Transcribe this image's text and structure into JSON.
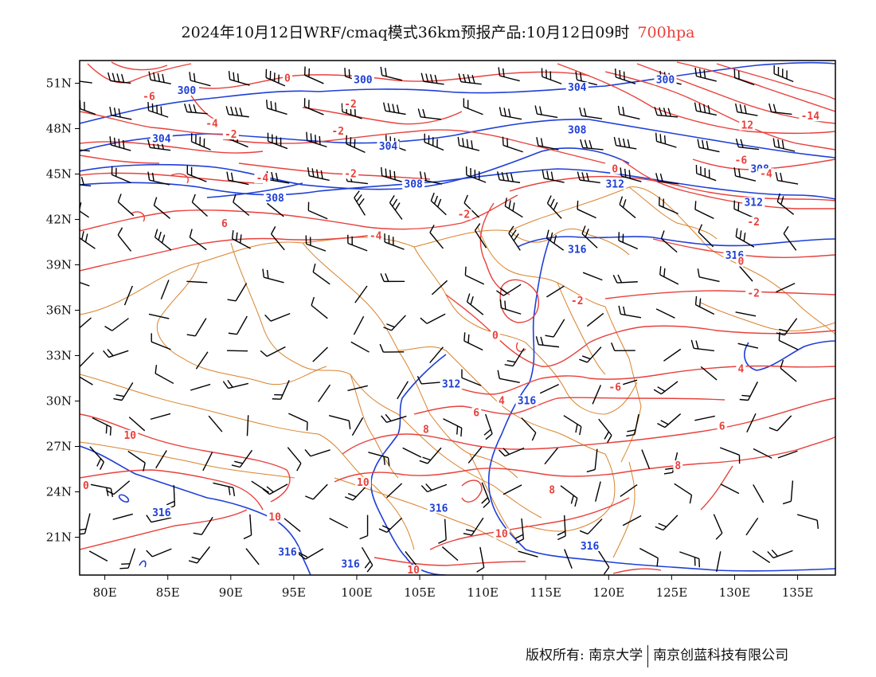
{
  "title": {
    "text": "2024年10月12日WRF/cmaq模式36km预报产品:10月12日09时",
    "level": "700hpa",
    "level_color": "#e8413c"
  },
  "axes": {
    "lat_labels": [
      "51N",
      "48N",
      "45N",
      "42N",
      "39N",
      "36N",
      "33N",
      "30N",
      "27N",
      "24N",
      "21N"
    ],
    "lat_values": [
      51,
      48,
      45,
      42,
      39,
      36,
      33,
      30,
      27,
      24,
      21
    ],
    "lon_labels": [
      "80E",
      "85E",
      "90E",
      "95E",
      "100E",
      "105E",
      "110E",
      "115E",
      "120E",
      "125E",
      "130E",
      "135E"
    ],
    "lon_values": [
      80,
      85,
      90,
      95,
      100,
      105,
      110,
      115,
      120,
      125,
      130,
      135
    ],
    "lon_range": [
      78,
      138
    ],
    "lat_range": [
      18.5,
      52.5
    ]
  },
  "colors": {
    "temperature": "#e8413c",
    "height": "#1f3fd6",
    "boundary": "#d9822b",
    "wind": "#000000"
  },
  "height_labels": [
    {
      "text": "300",
      "lon": 86.5,
      "lat": 50.4
    },
    {
      "text": "300",
      "lon": 100.5,
      "lat": 51.1
    },
    {
      "text": "300",
      "lon": 124.5,
      "lat": 51.1
    },
    {
      "text": "304",
      "lon": 84.5,
      "lat": 47.2
    },
    {
      "text": "304",
      "lon": 102.5,
      "lat": 46.7
    },
    {
      "text": "304",
      "lon": 117.5,
      "lat": 50.6
    },
    {
      "text": "308",
      "lon": 93.5,
      "lat": 43.3
    },
    {
      "text": "308",
      "lon": 104.5,
      "lat": 44.2
    },
    {
      "text": "308",
      "lon": 117.5,
      "lat": 47.8
    },
    {
      "text": "308",
      "lon": 132.0,
      "lat": 45.2
    },
    {
      "text": "312",
      "lon": 120.5,
      "lat": 44.2
    },
    {
      "text": "312",
      "lon": 131.5,
      "lat": 43.0
    },
    {
      "text": "312",
      "lon": 107.5,
      "lat": 31.0
    },
    {
      "text": "316",
      "lon": 117.5,
      "lat": 39.9
    },
    {
      "text": "316",
      "lon": 130.0,
      "lat": 39.5
    },
    {
      "text": "316",
      "lon": 113.5,
      "lat": 29.9
    },
    {
      "text": "316",
      "lon": 84.5,
      "lat": 22.5
    },
    {
      "text": "316",
      "lon": 106.5,
      "lat": 22.8
    },
    {
      "text": "316",
      "lon": 94.5,
      "lat": 19.9
    },
    {
      "text": "316",
      "lon": 99.5,
      "lat": 19.1
    },
    {
      "text": "316",
      "lon": 118.5,
      "lat": 20.3
    }
  ],
  "temp_labels": [
    {
      "text": "-6",
      "lon": 83.5,
      "lat": 50.0
    },
    {
      "text": "0",
      "lon": 94.5,
      "lat": 51.2
    },
    {
      "text": "-2",
      "lon": 99.5,
      "lat": 49.5
    },
    {
      "text": "-4",
      "lon": 88.5,
      "lat": 48.2
    },
    {
      "text": "-2",
      "lon": 90.0,
      "lat": 47.5
    },
    {
      "text": "-2",
      "lon": 98.5,
      "lat": 47.7
    },
    {
      "text": "-4",
      "lon": 92.5,
      "lat": 44.6
    },
    {
      "text": "-2",
      "lon": 99.5,
      "lat": 44.9
    },
    {
      "text": "0",
      "lon": 120.5,
      "lat": 45.2
    },
    {
      "text": "12",
      "lon": 131.0,
      "lat": 48.1
    },
    {
      "text": "-14",
      "lon": 136.0,
      "lat": 48.7
    },
    {
      "text": "-6",
      "lon": 130.5,
      "lat": 45.8
    },
    {
      "text": "-4",
      "lon": 132.5,
      "lat": 44.9
    },
    {
      "text": "-2",
      "lon": 108.5,
      "lat": 42.2
    },
    {
      "text": "-2",
      "lon": 131.5,
      "lat": 41.7
    },
    {
      "text": "6",
      "lon": 89.5,
      "lat": 41.6
    },
    {
      "text": "-4",
      "lon": 101.5,
      "lat": 40.8
    },
    {
      "text": "0",
      "lon": 130.5,
      "lat": 39.1
    },
    {
      "text": "-2",
      "lon": 117.5,
      "lat": 36.5
    },
    {
      "text": "-2",
      "lon": 131.5,
      "lat": 37.0
    },
    {
      "text": "0",
      "lon": 111.0,
      "lat": 34.2
    },
    {
      "text": "4",
      "lon": 130.5,
      "lat": 32.0
    },
    {
      "text": "-6",
      "lon": 120.5,
      "lat": 30.8
    },
    {
      "text": "4",
      "lon": 111.5,
      "lat": 29.9
    },
    {
      "text": "6",
      "lon": 109.5,
      "lat": 29.1
    },
    {
      "text": "8",
      "lon": 105.5,
      "lat": 28.0
    },
    {
      "text": "6",
      "lon": 129.0,
      "lat": 28.2
    },
    {
      "text": "10",
      "lon": 82.0,
      "lat": 27.6
    },
    {
      "text": "8",
      "lon": 125.5,
      "lat": 25.6
    },
    {
      "text": "0",
      "lon": 78.5,
      "lat": 24.3
    },
    {
      "text": "10",
      "lon": 100.5,
      "lat": 24.5
    },
    {
      "text": "8",
      "lon": 115.5,
      "lat": 24.0
    },
    {
      "text": "10",
      "lon": 93.5,
      "lat": 22.2
    },
    {
      "text": "10",
      "lon": 111.5,
      "lat": 21.1
    },
    {
      "text": "10",
      "lon": 104.5,
      "lat": 18.7
    }
  ],
  "footer": {
    "left": "版权所有: 南京大学",
    "right": "南京创蓝科技有限公司"
  }
}
